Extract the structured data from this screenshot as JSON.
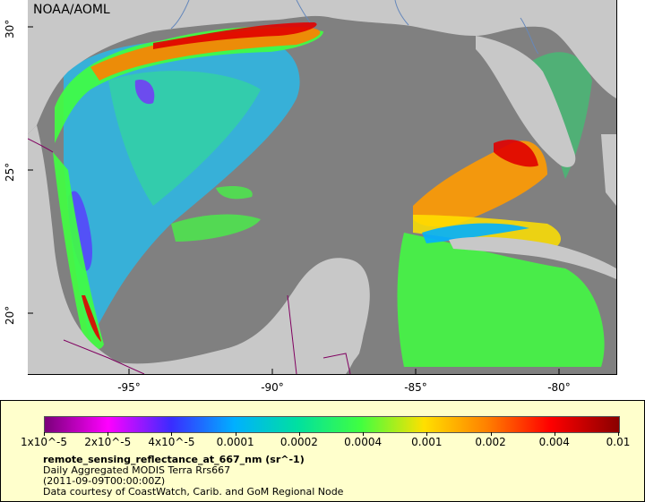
{
  "map": {
    "credit": "NOAA/AOML",
    "lon_ticks": [
      "-95°",
      "-90°",
      "-85°",
      "-80°"
    ],
    "lat_ticks": [
      "30°",
      "25°",
      "20°"
    ],
    "extent": {
      "lon_min": -98.5,
      "lon_max": -79.0,
      "lat_min": 17.8,
      "lat_max": 31.0
    }
  },
  "legend": {
    "colorbar_labels": [
      "1x10^-5",
      "2x10^-5",
      "4x10^-5",
      "0.0001",
      "0.0002",
      "0.0004",
      "0.001",
      "0.002",
      "0.004",
      "0.01"
    ],
    "colorbar_colors": [
      "#7a007a",
      "#ff00ff",
      "#3a2cff",
      "#00b0ff",
      "#00e0a0",
      "#40ff40",
      "#ffe000",
      "#ff8000",
      "#ff0000",
      "#8a0000"
    ],
    "title": "remote_sensing_reflectance_at_667_nm (sr^-1)",
    "line2": "Daily Aggregated MODIS Terra Rrs667",
    "line3": "(2011-09-09T00:00:00Z)",
    "line4": "Data courtesy of CoastWatch, Carib. and GoM Regional Node"
  },
  "colors": {
    "land": "#c8c8c8",
    "nodata": "#808080",
    "rivers": "#6688bb",
    "borders": "#800060",
    "legend_bg": "#ffffcc"
  }
}
